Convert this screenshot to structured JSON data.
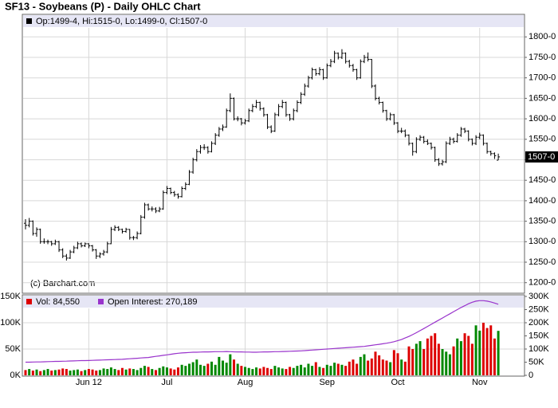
{
  "chart_data": [
    {
      "type": "ohlc",
      "title": "SF13 - Soybeans (P) - Daily OHLC Chart",
      "legend": "Op:1499-4, Hi:1515-0, Lo:1499-0, Cl:1507-0",
      "last_label": "1507-0",
      "credit": "(c) Barchart.com",
      "color": "#000000",
      "ylim": [
        1180,
        1820
      ],
      "yticks": [
        {
          "value": 1200,
          "label": "1200-0"
        },
        {
          "value": 1250,
          "label": "1250-0"
        },
        {
          "value": 1300,
          "label": "1300-0"
        },
        {
          "value": 1350,
          "label": "1350-0"
        },
        {
          "value": 1400,
          "label": "1400-0"
        },
        {
          "value": 1450,
          "label": "1450-0"
        },
        {
          "value": 1500,
          "label": "1500-0"
        },
        {
          "value": 1550,
          "label": "1550-0"
        },
        {
          "value": 1600,
          "label": "1600-0"
        },
        {
          "value": 1650,
          "label": "1650-0"
        },
        {
          "value": 1700,
          "label": "1700-0"
        },
        {
          "value": 1750,
          "label": "1750-0"
        },
        {
          "value": 1800,
          "label": "1800-0"
        }
      ],
      "ohlc": [
        [
          1345,
          1355,
          1330,
          1340
        ],
        [
          1340,
          1358,
          1335,
          1350
        ],
        [
          1350,
          1352,
          1315,
          1320
        ],
        [
          1320,
          1335,
          1312,
          1330
        ],
        [
          1330,
          1332,
          1295,
          1300
        ],
        [
          1300,
          1308,
          1295,
          1300
        ],
        [
          1300,
          1305,
          1294,
          1300
        ],
        [
          1300,
          1302,
          1290,
          1295
        ],
        [
          1295,
          1305,
          1292,
          1300
        ],
        [
          1300,
          1302,
          1275,
          1280
        ],
        [
          1280,
          1284,
          1260,
          1265
        ],
        [
          1265,
          1270,
          1254,
          1260
        ],
        [
          1260,
          1280,
          1258,
          1275
        ],
        [
          1275,
          1290,
          1272,
          1285
        ],
        [
          1285,
          1300,
          1282,
          1295
        ],
        [
          1295,
          1298,
          1286,
          1290
        ],
        [
          1290,
          1298,
          1287,
          1295
        ],
        [
          1295,
          1296,
          1284,
          1290
        ],
        [
          1290,
          1292,
          1276,
          1280
        ],
        [
          1280,
          1282,
          1258,
          1265
        ],
        [
          1265,
          1274,
          1260,
          1270
        ],
        [
          1270,
          1280,
          1266,
          1275
        ],
        [
          1275,
          1300,
          1272,
          1295
        ],
        [
          1295,
          1336,
          1294,
          1330
        ],
        [
          1330,
          1340,
          1326,
          1335
        ],
        [
          1335,
          1338,
          1326,
          1330
        ],
        [
          1330,
          1332,
          1320,
          1325
        ],
        [
          1325,
          1334,
          1322,
          1330
        ],
        [
          1330,
          1331,
          1305,
          1310
        ],
        [
          1310,
          1314,
          1304,
          1310
        ],
        [
          1310,
          1325,
          1306,
          1320
        ],
        [
          1320,
          1365,
          1318,
          1360
        ],
        [
          1360,
          1395,
          1356,
          1390
        ],
        [
          1390,
          1393,
          1376,
          1380
        ],
        [
          1380,
          1386,
          1374,
          1380
        ],
        [
          1380,
          1384,
          1370,
          1375
        ],
        [
          1375,
          1385,
          1372,
          1380
        ],
        [
          1380,
          1425,
          1378,
          1420
        ],
        [
          1420,
          1436,
          1416,
          1430
        ],
        [
          1430,
          1432,
          1416,
          1420
        ],
        [
          1420,
          1424,
          1410,
          1415
        ],
        [
          1415,
          1418,
          1405,
          1410
        ],
        [
          1410,
          1435,
          1408,
          1430
        ],
        [
          1430,
          1445,
          1426,
          1440
        ],
        [
          1440,
          1475,
          1438,
          1470
        ],
        [
          1470,
          1505,
          1466,
          1500
        ],
        [
          1500,
          1526,
          1496,
          1520
        ],
        [
          1520,
          1536,
          1515,
          1530
        ],
        [
          1530,
          1538,
          1524,
          1530
        ],
        [
          1530,
          1533,
          1515,
          1520
        ],
        [
          1520,
          1545,
          1518,
          1540
        ],
        [
          1540,
          1565,
          1536,
          1560
        ],
        [
          1560,
          1580,
          1556,
          1575
        ],
        [
          1575,
          1586,
          1570,
          1580
        ],
        [
          1580,
          1625,
          1578,
          1620
        ],
        [
          1620,
          1662,
          1616,
          1650
        ],
        [
          1650,
          1652,
          1596,
          1600
        ],
        [
          1600,
          1606,
          1594,
          1600
        ],
        [
          1600,
          1602,
          1584,
          1590
        ],
        [
          1590,
          1600,
          1586,
          1595
        ],
        [
          1595,
          1625,
          1592,
          1620
        ],
        [
          1620,
          1636,
          1616,
          1630
        ],
        [
          1630,
          1646,
          1626,
          1640
        ],
        [
          1640,
          1642,
          1620,
          1625
        ],
        [
          1625,
          1628,
          1605,
          1610
        ],
        [
          1610,
          1612,
          1575,
          1580
        ],
        [
          1580,
          1584,
          1565,
          1570
        ],
        [
          1570,
          1615,
          1568,
          1610
        ],
        [
          1610,
          1636,
          1606,
          1630
        ],
        [
          1630,
          1646,
          1626,
          1640
        ],
        [
          1640,
          1642,
          1605,
          1610
        ],
        [
          1610,
          1612,
          1595,
          1600
        ],
        [
          1600,
          1625,
          1596,
          1620
        ],
        [
          1620,
          1645,
          1616,
          1640
        ],
        [
          1640,
          1665,
          1636,
          1660
        ],
        [
          1660,
          1686,
          1656,
          1680
        ],
        [
          1680,
          1705,
          1676,
          1700
        ],
        [
          1700,
          1725,
          1696,
          1720
        ],
        [
          1720,
          1722,
          1705,
          1710
        ],
        [
          1710,
          1726,
          1706,
          1720
        ],
        [
          1720,
          1722,
          1695,
          1700
        ],
        [
          1700,
          1735,
          1698,
          1730
        ],
        [
          1730,
          1746,
          1726,
          1740
        ],
        [
          1740,
          1766,
          1736,
          1760
        ],
        [
          1760,
          1762,
          1745,
          1750
        ],
        [
          1750,
          1770,
          1746,
          1760
        ],
        [
          1760,
          1762,
          1735,
          1740
        ],
        [
          1740,
          1744,
          1725,
          1730
        ],
        [
          1730,
          1734,
          1715,
          1720
        ],
        [
          1720,
          1722,
          1695,
          1700
        ],
        [
          1700,
          1745,
          1698,
          1740
        ],
        [
          1740,
          1756,
          1736,
          1750
        ],
        [
          1750,
          1762,
          1740,
          1745
        ],
        [
          1745,
          1746,
          1675,
          1680
        ],
        [
          1680,
          1684,
          1645,
          1650
        ],
        [
          1650,
          1654,
          1635,
          1640
        ],
        [
          1640,
          1642,
          1615,
          1620
        ],
        [
          1620,
          1622,
          1595,
          1600
        ],
        [
          1600,
          1615,
          1596,
          1610
        ],
        [
          1610,
          1612,
          1585,
          1590
        ],
        [
          1590,
          1592,
          1565,
          1570
        ],
        [
          1570,
          1578,
          1565,
          1570
        ],
        [
          1570,
          1574,
          1555,
          1560
        ],
        [
          1560,
          1562,
          1535,
          1540
        ],
        [
          1540,
          1542,
          1510,
          1520
        ],
        [
          1520,
          1555,
          1516,
          1550
        ],
        [
          1550,
          1560,
          1546,
          1555
        ],
        [
          1555,
          1558,
          1540,
          1545
        ],
        [
          1545,
          1550,
          1536,
          1540
        ],
        [
          1540,
          1542,
          1525,
          1530
        ],
        [
          1530,
          1532,
          1495,
          1500
        ],
        [
          1500,
          1504,
          1485,
          1490
        ],
        [
          1490,
          1500,
          1486,
          1495
        ],
        [
          1495,
          1545,
          1492,
          1540
        ],
        [
          1540,
          1556,
          1536,
          1550
        ],
        [
          1550,
          1554,
          1540,
          1545
        ],
        [
          1545,
          1565,
          1542,
          1560
        ],
        [
          1560,
          1580,
          1556,
          1575
        ],
        [
          1575,
          1578,
          1565,
          1570
        ],
        [
          1570,
          1572,
          1545,
          1550
        ],
        [
          1550,
          1552,
          1535,
          1540
        ],
        [
          1540,
          1560,
          1536,
          1555
        ],
        [
          1555,
          1566,
          1550,
          1560
        ],
        [
          1560,
          1562,
          1535,
          1540
        ],
        [
          1540,
          1542,
          1515,
          1520
        ],
        [
          1520,
          1522,
          1510,
          1515
        ],
        [
          1515,
          1518,
          1502,
          1510
        ],
        [
          1499,
          1515,
          1499,
          1507
        ]
      ]
    },
    {
      "type": "bar",
      "xticks": [
        {
          "value": 17,
          "label": "Jun 12"
        },
        {
          "value": 38,
          "label": "Jul"
        },
        {
          "value": 59,
          "label": "Aug"
        },
        {
          "value": 81,
          "label": "Sep"
        },
        {
          "value": 100,
          "label": "Oct"
        },
        {
          "value": 122,
          "label": "Nov"
        }
      ],
      "ylim": [
        0,
        150000
      ],
      "yticks": [
        {
          "value": 0,
          "label": "0K"
        },
        {
          "value": 50000,
          "label": "50K"
        },
        {
          "value": 100000,
          "label": "100K"
        },
        {
          "value": 150000,
          "label": "150K"
        }
      ],
      "y2lim": [
        0,
        300000
      ],
      "y2ticks": [
        0,
        {
          "value": 50000,
          "label": "50K"
        },
        {
          "value": 100000,
          "label": "100K"
        },
        {
          "value": 150000,
          "label": "150K"
        },
        {
          "value": 200000,
          "label": "200K"
        },
        {
          "value": 250000,
          "label": "250K"
        },
        {
          "value": 300000,
          "label": "300K"
        }
      ],
      "series": [
        {
          "name": "Vol: 84,550",
          "color": "#dd0000",
          "up_color": "#008800",
          "down_color": "#dd0000",
          "values": [
            10000,
            12000,
            9000,
            11000,
            8000,
            10000,
            12000,
            9000,
            10000,
            11000,
            13000,
            12000,
            9000,
            10000,
            11000,
            8000,
            10000,
            12000,
            11000,
            9000,
            10000,
            13000,
            12000,
            15000,
            12000,
            10000,
            14000,
            11000,
            13000,
            12000,
            10000,
            14000,
            18000,
            16000,
            12000,
            10000,
            14000,
            17000,
            15000,
            13000,
            11000,
            15000,
            20000,
            18000,
            22000,
            25000,
            30000,
            20000,
            18000,
            22000,
            26000,
            20000,
            35000,
            28000,
            24000,
            40000,
            30000,
            22000,
            18000,
            16000,
            14000,
            12000,
            15000,
            13000,
            16000,
            14000,
            12000,
            18000,
            15000,
            13000,
            12000,
            16000,
            14000,
            18000,
            20000,
            15000,
            22000,
            18000,
            25000,
            16000,
            14000,
            20000,
            18000,
            24000,
            22000,
            20000,
            18000,
            26000,
            30000,
            22000,
            35000,
            40000,
            28000,
            32000,
            45000,
            38000,
            30000,
            28000,
            25000,
            48000,
            42000,
            30000,
            26000,
            55000,
            50000,
            60000,
            65000,
            50000,
            70000,
            75000,
            80000,
            60000,
            50000,
            45000,
            40000,
            55000,
            70000,
            65000,
            80000,
            75000,
            60000,
            95000,
            85000,
            100000,
            90000,
            95000,
            70000,
            84550
          ]
        },
        {
          "name": "Open Interest: 270,189",
          "color": "#9933cc",
          "axis": "y2",
          "values": [
            50000,
            50000,
            50500,
            51000,
            51000,
            51500,
            52000,
            52500,
            53000,
            53000,
            53500,
            54000,
            54500,
            55000,
            55500,
            56000,
            56000,
            56500,
            57000,
            57500,
            58000,
            58500,
            59000,
            59500,
            60000,
            60500,
            61000,
            62000,
            63000,
            64000,
            65000,
            66000,
            67000,
            68000,
            70000,
            72000,
            74000,
            76000,
            78000,
            80000,
            82000,
            84000,
            85000,
            86000,
            87000,
            88000,
            88000,
            88500,
            89000,
            89000,
            89500,
            90000,
            90000,
            90000,
            90500,
            90000,
            89500,
            89000,
            89000,
            88500,
            88500,
            88000,
            88000,
            88500,
            89000,
            89000,
            89500,
            90000,
            90000,
            90500,
            91000,
            91500,
            92000,
            92500,
            93000,
            94000,
            95000,
            96000,
            97000,
            98000,
            99000,
            100000,
            101000,
            102000,
            103000,
            104000,
            105000,
            106000,
            107000,
            108000,
            109000,
            110000,
            112000,
            114000,
            116000,
            118000,
            120000,
            122000,
            125000,
            128000,
            132000,
            136000,
            142000,
            148000,
            155000,
            162000,
            170000,
            178000,
            186000,
            194000,
            202000,
            210000,
            218000,
            226000,
            234000,
            242000,
            250000,
            258000,
            265000,
            272000,
            278000,
            282000,
            284000,
            284000,
            282000,
            279000,
            275000,
            270189
          ]
        }
      ]
    }
  ]
}
